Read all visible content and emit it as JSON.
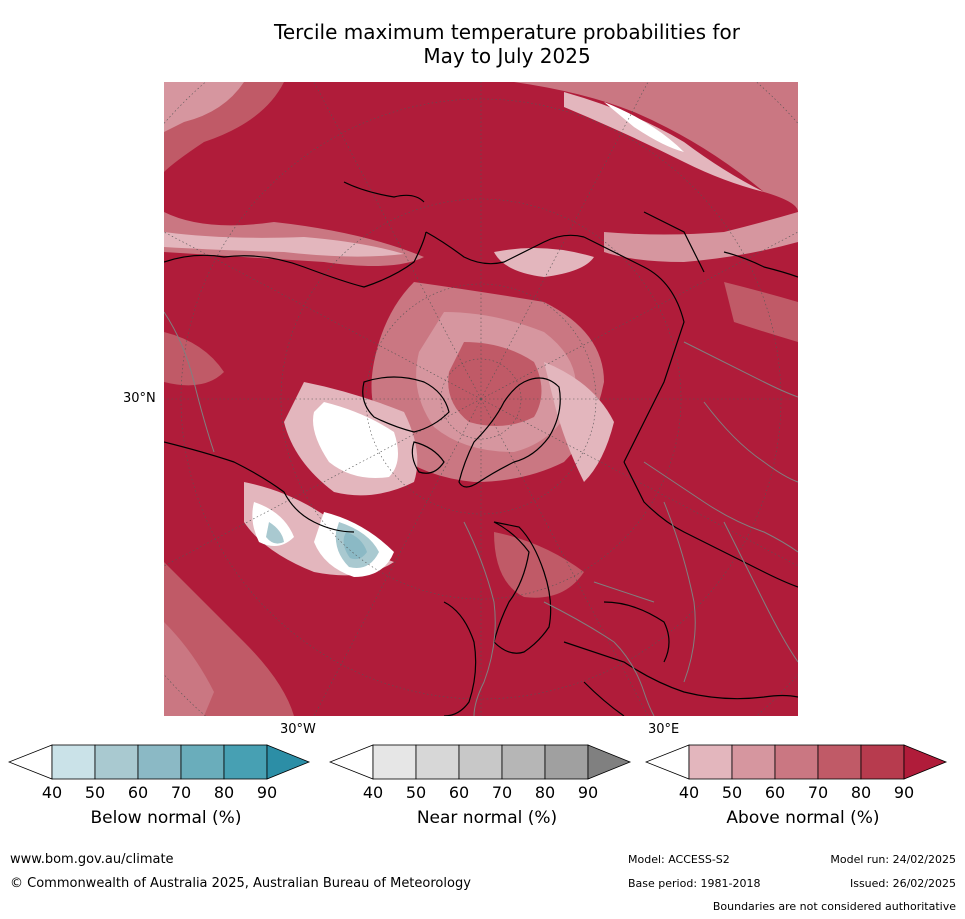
{
  "title": {
    "line1": "Tercile maximum temperature probabilities for",
    "line2": "May to July 2025"
  },
  "map": {
    "graticule_labels": {
      "lat_left": "30°N",
      "lon_bottom_left": "30°W",
      "lon_bottom_right": "30°E"
    },
    "colors": {
      "land_outline": "#000000",
      "borders": "#808080",
      "above_90": "#b01c3a"
    }
  },
  "legends": [
    {
      "key": "below",
      "label": "Below normal (%)",
      "ticks": [
        "40",
        "50",
        "60",
        "70",
        "80",
        "90"
      ],
      "colors": [
        "#ffffff",
        "#cae2e8",
        "#a9c9d0",
        "#8bb9c5",
        "#6aadbb",
        "#47a0b3",
        "#2c8ea6"
      ]
    },
    {
      "key": "near",
      "label": "Near normal (%)",
      "ticks": [
        "40",
        "50",
        "60",
        "70",
        "80",
        "90"
      ],
      "colors": [
        "#ffffff",
        "#e6e6e6",
        "#d7d7d7",
        "#c8c8c8",
        "#b6b6b6",
        "#a0a0a0",
        "#808080"
      ]
    },
    {
      "key": "above",
      "label": "Above normal (%)",
      "ticks": [
        "40",
        "50",
        "60",
        "70",
        "80",
        "90"
      ],
      "colors": [
        "#ffffff",
        "#e3b6bd",
        "#d6969f",
        "#ca7782",
        "#c05a67",
        "#b73b4e",
        "#b01c3a"
      ]
    }
  ],
  "footer": {
    "website": "www.bom.gov.au/climate",
    "copyright": "© Commonwealth of Australia 2025, Australian Bureau of Meteorology",
    "model": "Model: ACCESS-S2",
    "base_period": "Base period: 1981-2018",
    "model_run": "Model run: 24/02/2025",
    "issued": "Issued: 26/02/2025",
    "disclaimer": "Boundaries are not considered authoritative"
  }
}
